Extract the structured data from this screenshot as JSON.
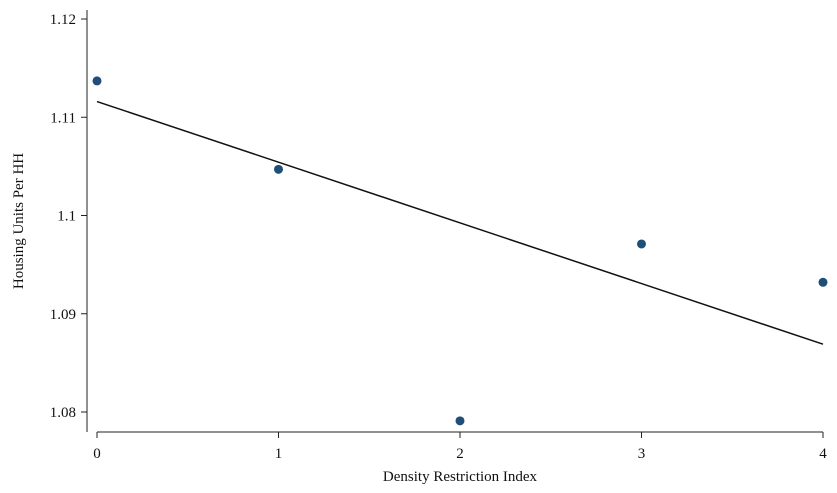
{
  "chart_data": {
    "type": "scatter",
    "xlabel": "Density Restriction Index",
    "ylabel": "Housing Units Per HH",
    "xlim": [
      0,
      4
    ],
    "ylim": [
      1.08,
      1.12
    ],
    "x_ticks": [
      0,
      1,
      2,
      3,
      4
    ],
    "x_tick_labels": [
      "0",
      "1",
      "2",
      "3",
      "4"
    ],
    "y_ticks": [
      1.08,
      1.09,
      1.1,
      1.11,
      1.12
    ],
    "y_tick_labels": [
      "1.08",
      "1.09",
      "1.1",
      "1.11",
      "1.12"
    ],
    "grid": false,
    "series": [
      {
        "points": [
          {
            "x": 0,
            "y": 1.1137
          },
          {
            "x": 1,
            "y": 1.1047
          },
          {
            "x": 2,
            "y": 1.0791
          },
          {
            "x": 3,
            "y": 1.0971
          },
          {
            "x": 4,
            "y": 1.0932
          }
        ],
        "color": "#1f4e79"
      }
    ],
    "fit_line": {
      "type": "linear",
      "start": {
        "x": 0,
        "y": 1.1116
      },
      "end": {
        "x": 4,
        "y": 1.0869
      },
      "color": "#111111"
    }
  }
}
